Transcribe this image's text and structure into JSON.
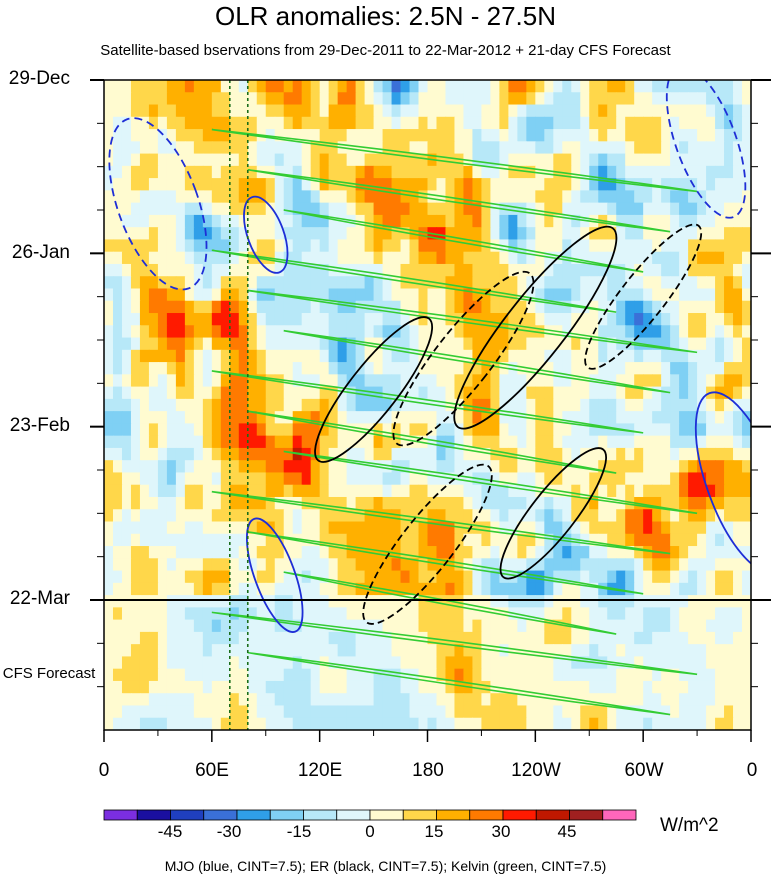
{
  "chart_data": {
    "type": "heatmap",
    "title": "OLR anomalies: 2.5N - 27.5N",
    "subtitle": "Satellite-based bservations from 29-Dec-2011 to 22-Mar-2012 + 21-day CFS Forecast",
    "x_ticks": [
      "0",
      "60E",
      "120E",
      "180",
      "120W",
      "60W",
      "0"
    ],
    "x_tick_lon": [
      0,
      60,
      120,
      180,
      240,
      300,
      360
    ],
    "y_ticks": [
      "29-Dec",
      "26-Jan",
      "23-Feb",
      "22-Mar"
    ],
    "y_tick_days": [
      0,
      28,
      56,
      84
    ],
    "forecast_label": "CFS Forecast",
    "forecast_days": 21,
    "observed_end_day": 84,
    "colorbar": {
      "labels": [
        "-45",
        "-30",
        "-15",
        "0",
        "15",
        "30",
        "45"
      ],
      "label_values": [
        -45,
        -30,
        -15,
        0,
        15,
        30,
        45
      ],
      "levels": [
        -52.5,
        -45,
        -37.5,
        -30,
        -22.5,
        -15,
        -7.5,
        0,
        7.5,
        15,
        22.5,
        30,
        37.5,
        45,
        52.5
      ],
      "colors": [
        "#7b2ee0",
        "#1a0fa0",
        "#1f3fbf",
        "#3a70d8",
        "#2f9fe8",
        "#7fd0f4",
        "#b7e8f8",
        "#dff6fb",
        "#fffbd0",
        "#ffd74a",
        "#ffb000",
        "#ff7a00",
        "#ff1a00",
        "#c01800",
        "#a02020",
        "#ff66bb"
      ],
      "units": "W/m^2"
    },
    "contour_legend": "MJO (blue, CINT=7.5); ER (black, CINT=7.5); Kelvin (green, CINT=7.5)",
    "contour_colors": {
      "mjo": "#1e2ed6",
      "er": "#000000",
      "kelvin": "#33cc33"
    },
    "reference_lines_lon": [
      70,
      80
    ]
  }
}
